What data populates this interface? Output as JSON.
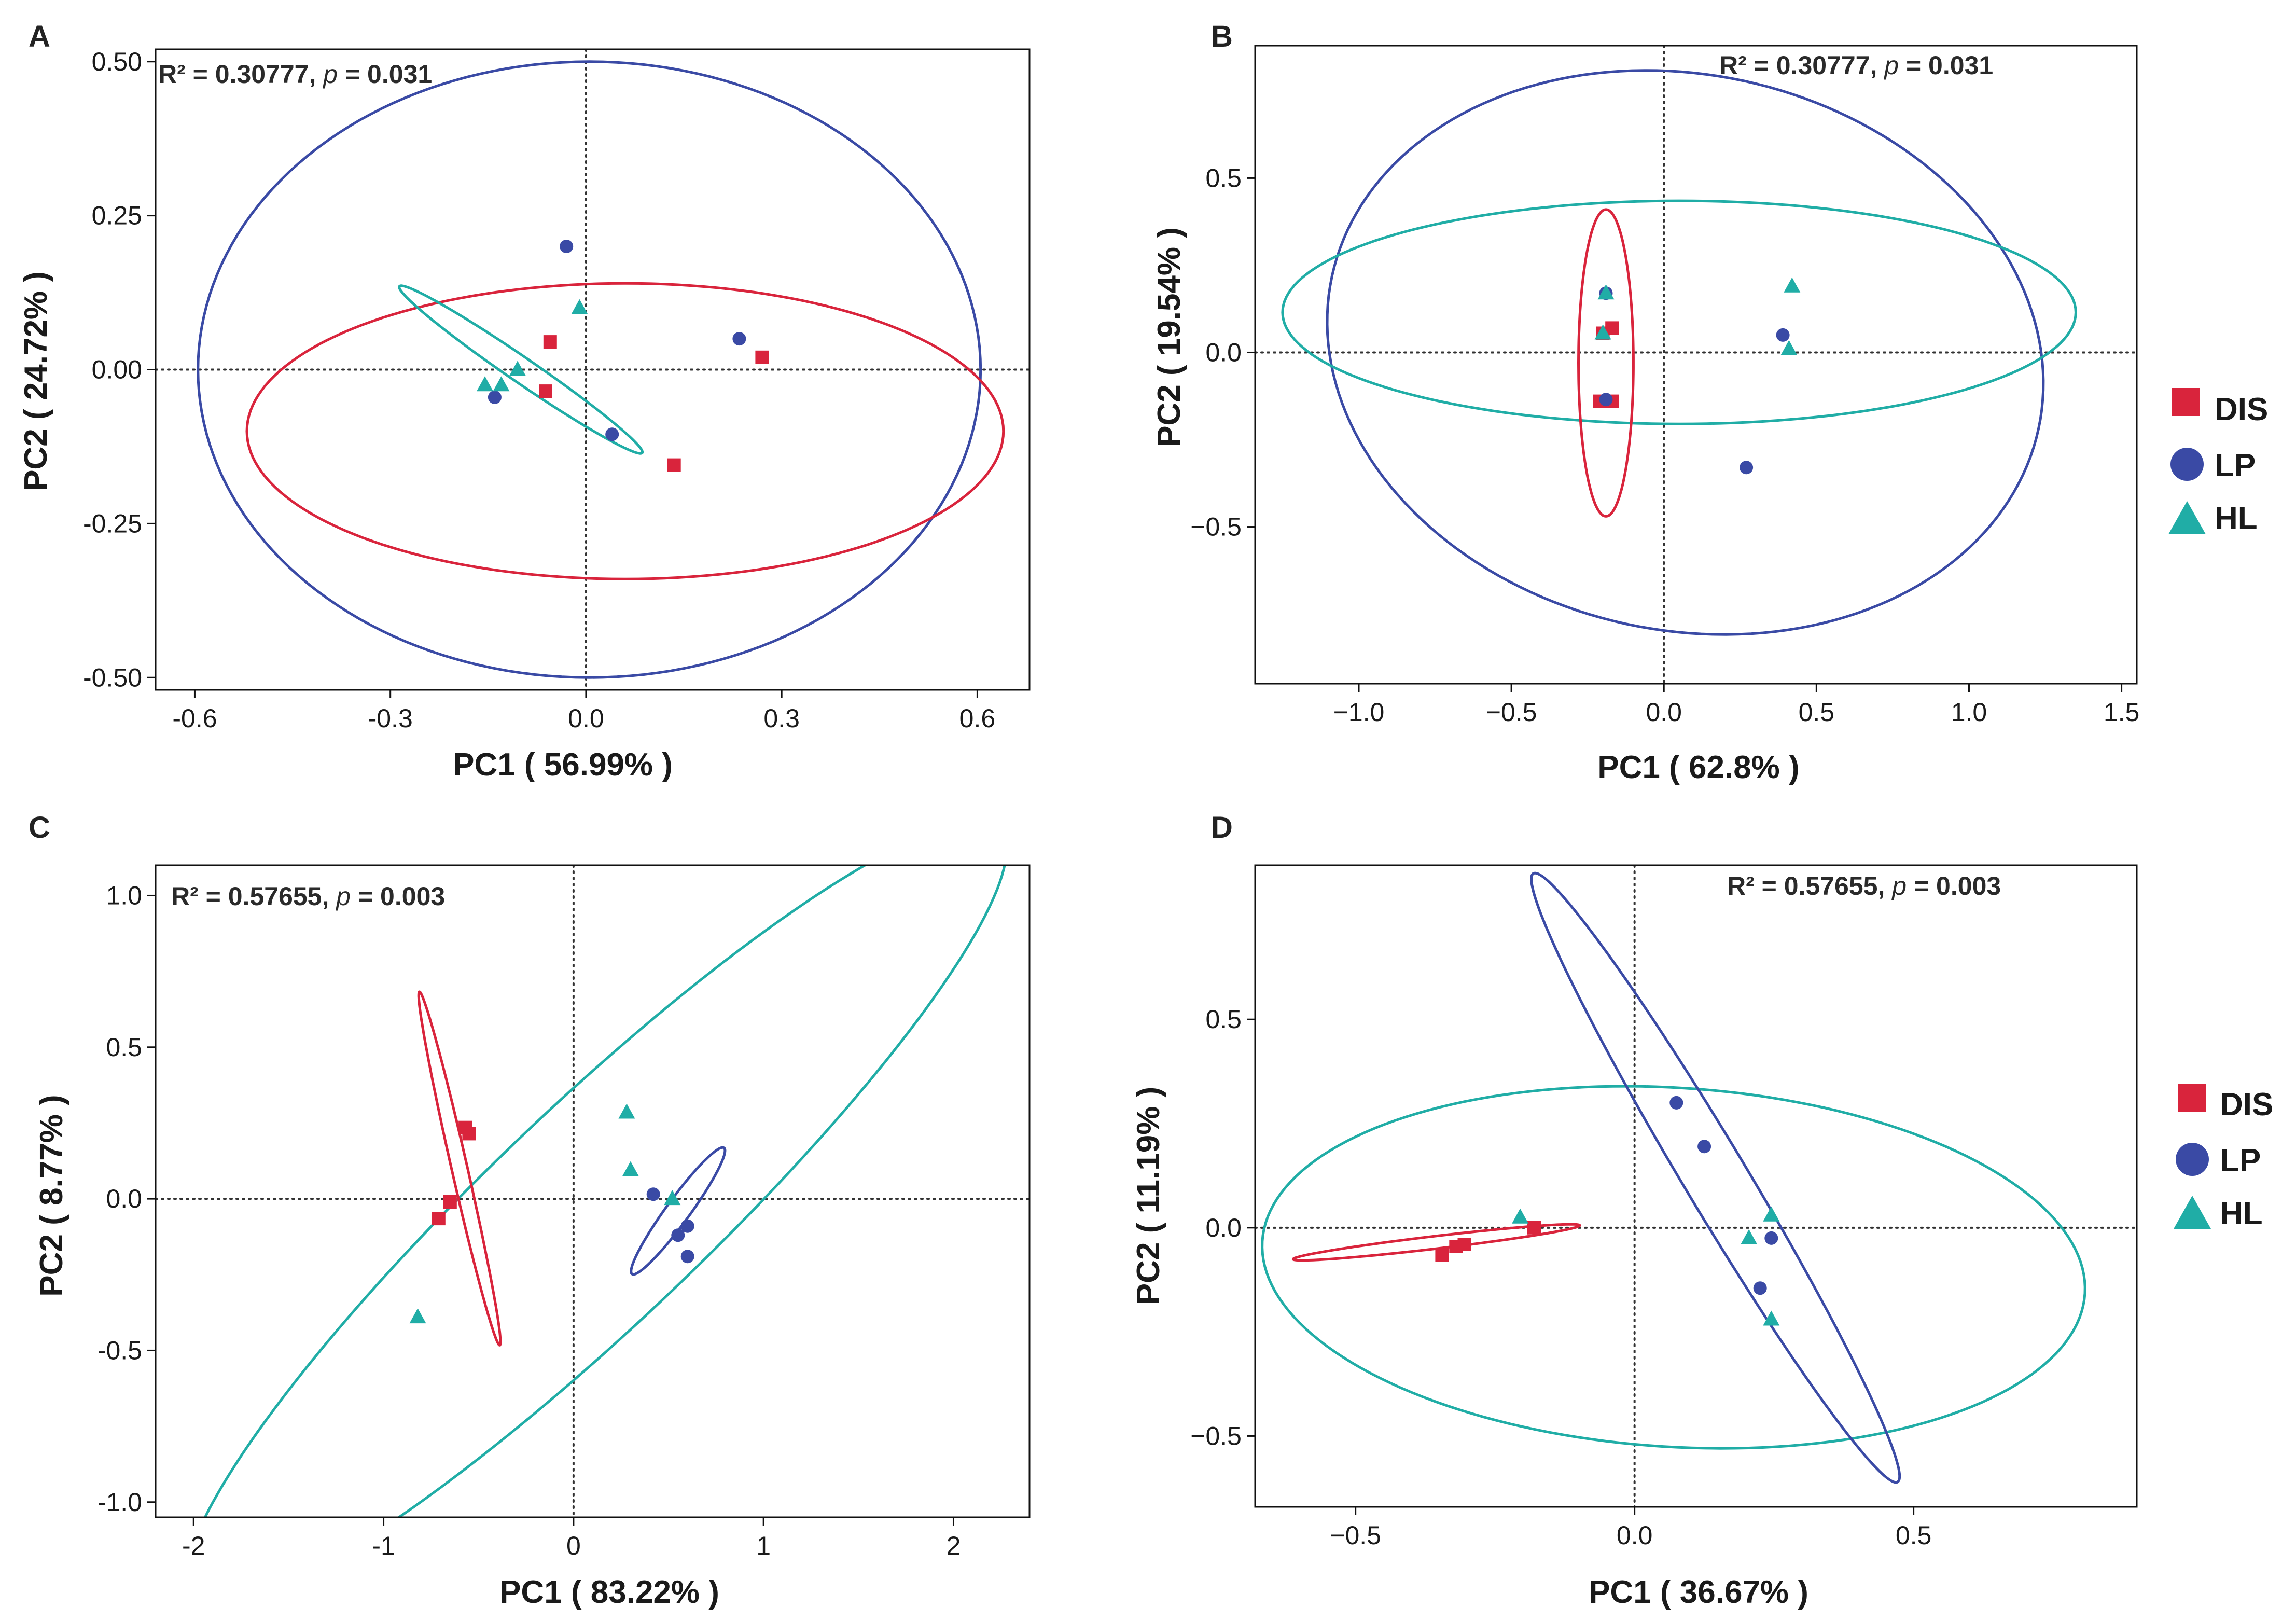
{
  "colors": {
    "DIS": "#d9243c",
    "LP": "#3a4aa5",
    "HL": "#20ada6",
    "axis": "#111111",
    "refline": "#333333"
  },
  "legend": [
    {
      "group": "DIS",
      "label": "DIS",
      "shape": "square"
    },
    {
      "group": "LP",
      "label": "LP",
      "shape": "circle"
    },
    {
      "group": "HL",
      "label": "HL",
      "shape": "triangle"
    }
  ],
  "chart_data": [
    {
      "type": "scatter",
      "panel": "A",
      "stat": {
        "r2_text": "R² = 0.30777, ",
        "p_symbol": "p",
        "p_value": " = 0.031"
      },
      "xlabel": "PC1 ( 56.99% )",
      "ylabel": "PC2 ( 24.72% )",
      "xlim": [
        -0.66,
        0.68
      ],
      "ylim": [
        -0.52,
        0.52
      ],
      "xticks": [
        {
          "v": -0.6,
          "label": "-0.6"
        },
        {
          "v": -0.3,
          "label": "-0.3"
        },
        {
          "v": 0,
          "label": "0.0"
        },
        {
          "v": 0.3,
          "label": "0.3"
        },
        {
          "v": 0.6,
          "label": "0.6"
        }
      ],
      "yticks": [
        {
          "v": -0.5,
          "label": "-0.50"
        },
        {
          "v": -0.25,
          "label": "-0.25"
        },
        {
          "v": 0,
          "label": "0.00"
        },
        {
          "v": 0.25,
          "label": "0.25"
        },
        {
          "v": 0.5,
          "label": "0.50"
        }
      ],
      "series": [
        {
          "name": "DIS",
          "points": [
            [
              -0.055,
              0.045
            ],
            [
              -0.062,
              -0.035
            ],
            [
              0.135,
              -0.155
            ],
            [
              0.27,
              0.02
            ]
          ]
        },
        {
          "name": "LP",
          "points": [
            [
              -0.03,
              0.2
            ],
            [
              0.235,
              0.05
            ],
            [
              0.04,
              -0.105
            ],
            [
              -0.14,
              -0.045
            ]
          ]
        },
        {
          "name": "HL",
          "points": [
            [
              -0.01,
              0.1
            ],
            [
              -0.105,
              0.0
            ],
            [
              -0.13,
              -0.025
            ],
            [
              -0.155,
              -0.025
            ]
          ]
        }
      ],
      "ellipses": [
        {
          "group": "LP",
          "cx": 0.005,
          "cy": 0.0,
          "rx": 0.6,
          "ry": 0.5,
          "angle": 0
        },
        {
          "group": "DIS",
          "cx": 0.06,
          "cy": -0.1,
          "rx": 0.58,
          "ry": 0.24,
          "angle": 0
        },
        {
          "group": "HL",
          "cx": -0.1,
          "cy": -0.0,
          "rx": 0.23,
          "ry": 0.02,
          "angle": -36
        }
      ]
    },
    {
      "type": "scatter",
      "panel": "B",
      "stat": {
        "r2_text": "R² = 0.30777, ",
        "p_symbol": "p",
        "p_value": " = 0.031"
      },
      "xlabel": "PC1 ( 62.8% )",
      "ylabel": "PC2 ( 19.54% )",
      "xlim": [
        -1.34,
        1.55
      ],
      "ylim": [
        -0.95,
        0.88
      ],
      "xticks": [
        {
          "v": -1.0,
          "label": "−1.0"
        },
        {
          "v": -0.5,
          "label": "−0.5"
        },
        {
          "v": 0,
          "label": "0.0"
        },
        {
          "v": 0.5,
          "label": "0.5"
        },
        {
          "v": 1.0,
          "label": "1.0"
        },
        {
          "v": 1.5,
          "label": "1.5"
        }
      ],
      "yticks": [
        {
          "v": -0.5,
          "label": "−0.5"
        },
        {
          "v": 0,
          "label": "0.0"
        },
        {
          "v": 0.5,
          "label": "0.5"
        }
      ],
      "series": [
        {
          "name": "DIS",
          "points": [
            [
              -0.2,
              0.055
            ],
            [
              -0.17,
              0.07
            ],
            [
              -0.21,
              -0.14
            ],
            [
              -0.17,
              -0.14
            ]
          ]
        },
        {
          "name": "LP",
          "points": [
            [
              -0.19,
              0.17
            ],
            [
              -0.19,
              -0.135
            ],
            [
              0.39,
              0.05
            ],
            [
              0.27,
              -0.33
            ]
          ]
        },
        {
          "name": "HL",
          "points": [
            [
              -0.19,
              0.17
            ],
            [
              -0.2,
              0.055
            ],
            [
              0.42,
              0.19
            ],
            [
              0.41,
              0.01
            ]
          ]
        }
      ],
      "ellipses": [
        {
          "group": "LP",
          "cx": 0.07,
          "cy": 0.0,
          "rx": 1.18,
          "ry": 0.8,
          "angle": -8
        },
        {
          "group": "HL",
          "cx": 0.05,
          "cy": 0.115,
          "rx": 1.3,
          "ry": 0.32,
          "angle": 0
        },
        {
          "group": "DIS",
          "cx": -0.19,
          "cy": -0.03,
          "rx": 0.09,
          "ry": 0.44,
          "angle": 0
        }
      ]
    },
    {
      "type": "scatter",
      "panel": "C",
      "stat": {
        "r2_text": "R² = 0.57655, ",
        "p_symbol": "p",
        "p_value": " = 0.003"
      },
      "xlabel": "PC1 ( 83.22% )",
      "ylabel": "PC2 ( 8.77% )",
      "xlim": [
        -2.2,
        2.4
      ],
      "ylim": [
        -1.05,
        1.1
      ],
      "xticks": [
        {
          "v": -2,
          "label": "-2"
        },
        {
          "v": -1,
          "label": "-1"
        },
        {
          "v": 0,
          "label": "0"
        },
        {
          "v": 1,
          "label": "1"
        },
        {
          "v": 2,
          "label": "2"
        }
      ],
      "yticks": [
        {
          "v": -1.0,
          "label": "-1.0"
        },
        {
          "v": -0.5,
          "label": "-0.5"
        },
        {
          "v": 0,
          "label": "0.0"
        },
        {
          "v": 0.5,
          "label": "0.5"
        },
        {
          "v": 1.0,
          "label": "1.0"
        }
      ],
      "series": [
        {
          "name": "DIS",
          "points": [
            [
              -0.57,
              0.235
            ],
            [
              -0.55,
              0.215
            ],
            [
              -0.65,
              -0.01
            ],
            [
              -0.71,
              -0.065
            ]
          ]
        },
        {
          "name": "LP",
          "points": [
            [
              0.42,
              0.015
            ],
            [
              0.6,
              -0.09
            ],
            [
              0.55,
              -0.12
            ],
            [
              0.6,
              -0.19
            ]
          ]
        },
        {
          "name": "HL",
          "points": [
            [
              0.28,
              0.285
            ],
            [
              0.3,
              0.095
            ],
            [
              0.52,
              0.0
            ],
            [
              -0.82,
              -0.39
            ]
          ]
        }
      ],
      "ellipses": [
        {
          "group": "HL",
          "cx": 0.12,
          "cy": -0.05,
          "rx": 2.48,
          "ry": 0.42,
          "angle": 30
        },
        {
          "group": "DIS",
          "cx": -0.6,
          "cy": 0.1,
          "rx": 0.62,
          "ry": 0.04,
          "angle": -70
        },
        {
          "group": "LP",
          "cx": 0.55,
          "cy": -0.04,
          "rx": 0.32,
          "ry": 0.05,
          "angle": 40
        }
      ]
    },
    {
      "type": "scatter",
      "panel": "D",
      "stat": {
        "r2_text": "R² = 0.57655, ",
        "p_symbol": "p",
        "p_value": " = 0.003"
      },
      "xlabel": "PC1 ( 36.67% )",
      "ylabel": "PC2 ( 11.19% )",
      "xlim": [
        -0.68,
        0.9
      ],
      "ylim": [
        -0.67,
        0.87
      ],
      "xticks": [
        {
          "v": -0.5,
          "label": "−0.5"
        },
        {
          "v": 0,
          "label": "0.0"
        },
        {
          "v": 0.5,
          "label": "0.5"
        }
      ],
      "yticks": [
        {
          "v": -0.5,
          "label": "−0.5"
        },
        {
          "v": 0,
          "label": "0.0"
        },
        {
          "v": 0.5,
          "label": "0.5"
        }
      ],
      "series": [
        {
          "name": "DIS",
          "points": [
            [
              -0.345,
              -0.065
            ],
            [
              -0.32,
              -0.045
            ],
            [
              -0.305,
              -0.04
            ],
            [
              -0.18,
              0.0
            ]
          ]
        },
        {
          "name": "LP",
          "points": [
            [
              0.075,
              0.3
            ],
            [
              0.125,
              0.195
            ],
            [
              0.245,
              -0.025
            ],
            [
              0.225,
              -0.145
            ]
          ]
        },
        {
          "name": "HL",
          "points": [
            [
              -0.205,
              0.025
            ],
            [
              0.205,
              -0.025
            ],
            [
              0.245,
              0.03
            ],
            [
              0.245,
              -0.22
            ]
          ]
        }
      ],
      "ellipses": [
        {
          "group": "HL",
          "cx": 0.07,
          "cy": -0.095,
          "rx": 0.74,
          "ry": 0.43,
          "angle": -6
        },
        {
          "group": "LP",
          "cx": 0.145,
          "cy": 0.12,
          "rx": 0.8,
          "ry": 0.06,
          "angle": -66
        },
        {
          "group": "DIS",
          "cx": -0.355,
          "cy": -0.035,
          "rx": 0.26,
          "ry": 0.015,
          "angle": 9
        }
      ]
    }
  ]
}
